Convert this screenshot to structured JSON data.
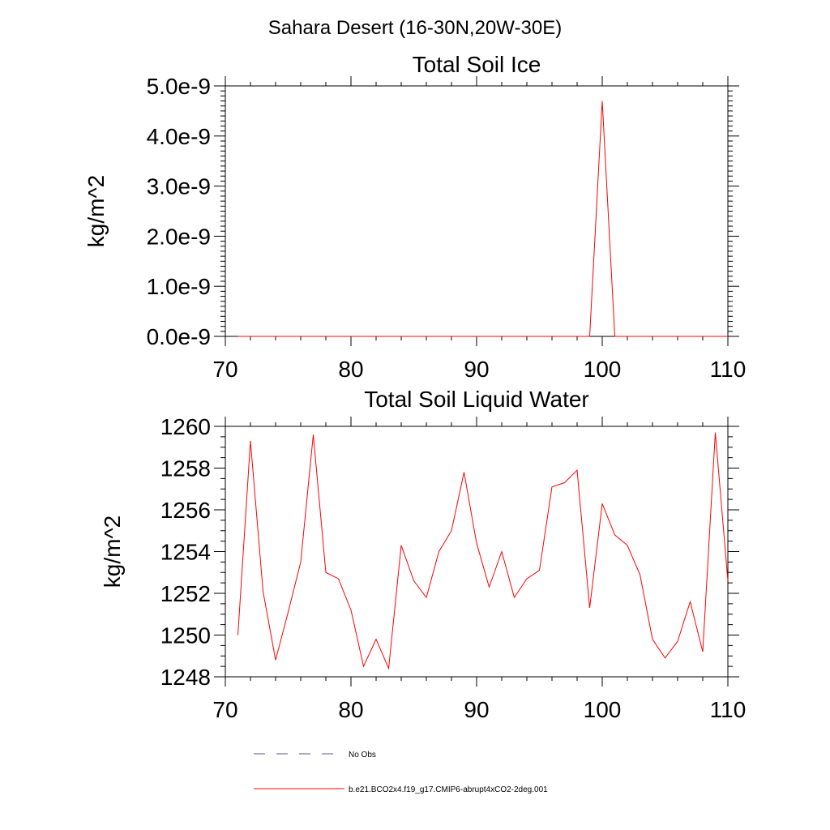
{
  "page_title": "Sahara Desert (16-30N,20W-30E)",
  "colors": {
    "model": "#ff0000",
    "obs": "#5a5a9a",
    "axis": "#000000"
  },
  "legend": {
    "entries": [
      {
        "label": "No Obs",
        "style": "dashed",
        "color": "#5a5a9a"
      },
      {
        "label": "b.e21.BCO2x4.f19_g17.CMIP6-abrupt4xCO2-2deg.001",
        "style": "solid",
        "color": "#ff0000"
      }
    ]
  },
  "chart_data": [
    {
      "type": "line",
      "title": "Total Soil Ice",
      "xlabel": "",
      "ylabel": "kg/m^2",
      "xlim": [
        70,
        110
      ],
      "ylim": [
        0,
        5e-09
      ],
      "x_ticks": [
        "70",
        "80",
        "90",
        "100",
        "110"
      ],
      "y_ticks": [
        "0.0e-9",
        "1.0e-9",
        "2.0e-9",
        "3.0e-9",
        "4.0e-9",
        "5.0e-9"
      ],
      "grid": false,
      "x": [
        71,
        72,
        73,
        74,
        75,
        76,
        77,
        78,
        79,
        80,
        81,
        82,
        83,
        84,
        85,
        86,
        87,
        88,
        89,
        90,
        91,
        92,
        93,
        94,
        95,
        96,
        97,
        98,
        99,
        100,
        101,
        102,
        103,
        104,
        105,
        106,
        107,
        108,
        109,
        110
      ],
      "series": [
        {
          "name": "b.e21.BCO2x4.f19_g17.CMIP6-abrupt4xCO2-2deg.001",
          "values": [
            0,
            0,
            0,
            0,
            0,
            0,
            0,
            0,
            0,
            0,
            0,
            0,
            0,
            0,
            0,
            0,
            0,
            0,
            0,
            0,
            0,
            0,
            0,
            0,
            0,
            0,
            0,
            0,
            0,
            4.7e-09,
            0,
            0,
            0,
            0,
            0,
            0,
            0,
            0,
            0,
            0
          ]
        }
      ]
    },
    {
      "type": "line",
      "title": "Total Soil Liquid Water",
      "xlabel": "",
      "ylabel": "kg/m^2",
      "xlim": [
        70,
        110
      ],
      "ylim": [
        1248,
        1260
      ],
      "x_ticks": [
        "70",
        "80",
        "90",
        "100",
        "110"
      ],
      "y_ticks": [
        "1248",
        "1250",
        "1252",
        "1254",
        "1256",
        "1258",
        "1260"
      ],
      "grid": false,
      "x": [
        71,
        72,
        73,
        74,
        75,
        76,
        77,
        78,
        79,
        80,
        81,
        82,
        83,
        84,
        85,
        86,
        87,
        88,
        89,
        90,
        91,
        92,
        93,
        94,
        95,
        96,
        97,
        98,
        99,
        100,
        101,
        102,
        103,
        104,
        105,
        106,
        107,
        108,
        109,
        110
      ],
      "series": [
        {
          "name": "b.e21.BCO2x4.f19_g17.CMIP6-abrupt4xCO2-2deg.001",
          "values": [
            1250.0,
            1259.3,
            1252.1,
            1248.8,
            1251.1,
            1253.5,
            1259.6,
            1253.0,
            1252.7,
            1251.2,
            1248.5,
            1249.8,
            1248.4,
            1254.3,
            1252.6,
            1251.8,
            1254.0,
            1255.0,
            1257.8,
            1254.4,
            1252.3,
            1254.0,
            1251.8,
            1252.7,
            1253.1,
            1257.1,
            1257.3,
            1257.9,
            1251.3,
            1256.3,
            1254.8,
            1254.3,
            1252.9,
            1249.8,
            1248.9,
            1249.7,
            1251.6,
            1249.2,
            1259.7,
            1252.6
          ]
        }
      ]
    }
  ]
}
